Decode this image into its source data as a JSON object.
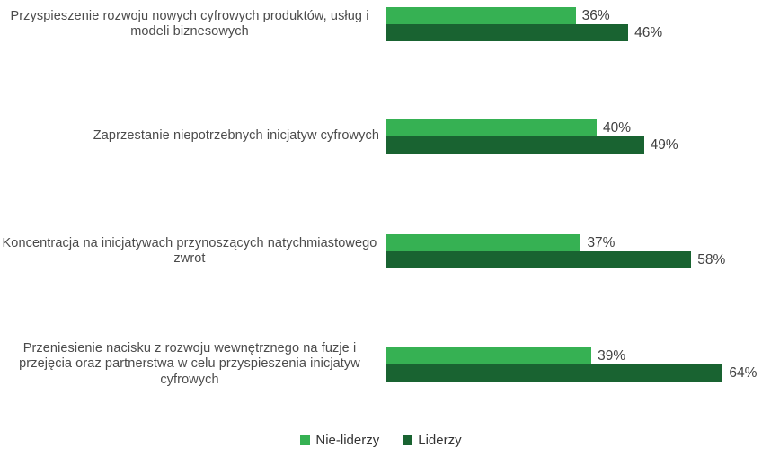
{
  "chart_data": {
    "type": "bar",
    "orientation": "horizontal",
    "title": "",
    "xlabel": "",
    "ylabel": "",
    "grid": false,
    "legend_position": "bottom-center",
    "value_suffix": "%",
    "xlim": [
      0,
      70
    ],
    "categories": [
      "Przyspieszenie rozwoju nowych cyfrowych produktów, usług i modeli biznesowych",
      "Zaprzestanie niepotrzebnych inicjatyw cyfrowych",
      "Koncentracja na inicjatywach przynoszących natychmiastowego zwrot",
      "Przeniesienie nacisku z rozwoju wewnętrznego na fuzje i przejęcia oraz partnerstwa w celu przyspieszenia inicjatyw cyfrowych"
    ],
    "series": [
      {
        "name": "Nie-liderzy",
        "color": "#36b153",
        "values": [
          36,
          40,
          37,
          39
        ]
      },
      {
        "name": "Liderzy",
        "color": "#196331",
        "values": [
          46,
          49,
          58,
          64
        ]
      }
    ],
    "value_labels": [
      [
        "36%",
        "46%"
      ],
      [
        "40%",
        "49%"
      ],
      [
        "37%",
        "58%"
      ],
      [
        "39%",
        "64%"
      ]
    ]
  },
  "legend": {
    "items": [
      {
        "label": "Nie-liderzy",
        "color": "#36b153"
      },
      {
        "label": "Liderzy",
        "color": "#196331"
      }
    ]
  }
}
